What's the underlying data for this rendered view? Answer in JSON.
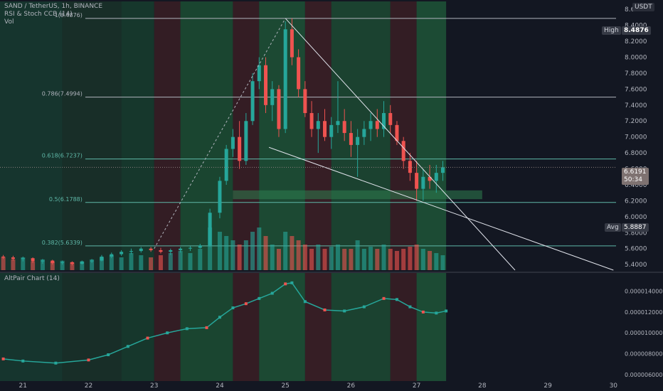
{
  "header": {
    "symbol_line": "SAND / TetherUS, 1h, BINANCE",
    "indicator_1": "RSI & Stoch CCB (14)",
    "indicator_2": "Vol"
  },
  "currency": "USDT",
  "tags": {
    "high_label": "High",
    "high_value": "8.4876",
    "last_value": "6.6191",
    "countdown": "50:34",
    "avg_label": "Avg",
    "avg_value": "5.8887"
  },
  "lower_pane_title": "AltPair Chart (14)",
  "colors": {
    "background": "#131722",
    "bull": "#26a69a",
    "bear": "#ef5350",
    "green_zone": "#1b5e3a",
    "red_zone": "#5e1b22",
    "grid": "#1e222d",
    "line": "#d1d4dc"
  },
  "chart_data": [
    {
      "type": "candlestick",
      "y_axis": {
        "ticks": [
          "8.6000",
          "8.4000",
          "8.2000",
          "8.0000",
          "7.8000",
          "7.6000",
          "7.4000",
          "7.2000",
          "7.0000",
          "6.8000",
          "6.6000",
          "6.4000",
          "6.2000",
          "6.0000",
          "5.8000",
          "5.6000",
          "5.4000"
        ],
        "range": [
          5.33,
          8.7
        ]
      },
      "x_axis": {
        "ticks": [
          "21",
          "22",
          "23",
          "24",
          "25",
          "26",
          "27",
          "28",
          "29",
          "30"
        ],
        "tick_values": [
          21,
          22,
          23,
          24,
          25,
          26,
          27,
          28,
          29,
          30
        ],
        "range": [
          20.65,
          30.04
        ]
      },
      "fib_levels": [
        {
          "label": "1(8.4876)",
          "value": 8.4876
        },
        {
          "label": "0.786(7.4994)",
          "value": 7.4994
        },
        {
          "label": "0.618(6.7237)",
          "value": 6.7237
        },
        {
          "label": "0.5(6.1788)",
          "value": 6.1788
        },
        {
          "label": "0.382(5.6339)",
          "value": 5.6339
        }
      ],
      "last_price": 6.6191,
      "avg_price": 5.8887,
      "zone": {
        "x": [
          24.2,
          28.0
        ],
        "y": [
          6.22,
          6.33
        ]
      },
      "wedge": {
        "upper": [
          [
            25.0,
            8.4876
          ],
          [
            28.5,
            5.33
          ]
        ],
        "lower": [
          [
            24.75,
            6.87
          ],
          [
            30.0,
            5.33
          ]
        ],
        "dashed": [
          [
            23.0,
            5.6
          ],
          [
            25.0,
            8.4876
          ]
        ]
      },
      "ohlc": [
        [
          20.7,
          5.5,
          5.52,
          5.47,
          5.49
        ],
        [
          20.85,
          5.49,
          5.51,
          5.45,
          5.47
        ],
        [
          21.0,
          5.47,
          5.5,
          5.44,
          5.48
        ],
        [
          21.15,
          5.48,
          5.49,
          5.42,
          5.44
        ],
        [
          21.3,
          5.44,
          5.47,
          5.41,
          5.45
        ],
        [
          21.45,
          5.45,
          5.46,
          5.4,
          5.42
        ],
        [
          21.6,
          5.42,
          5.45,
          5.4,
          5.43
        ],
        [
          21.75,
          5.43,
          5.44,
          5.39,
          5.41
        ],
        [
          21.9,
          5.41,
          5.45,
          5.4,
          5.44
        ],
        [
          22.05,
          5.44,
          5.47,
          5.42,
          5.45
        ],
        [
          22.2,
          5.45,
          5.52,
          5.44,
          5.5
        ],
        [
          22.35,
          5.5,
          5.55,
          5.48,
          5.53
        ],
        [
          22.5,
          5.53,
          5.58,
          5.51,
          5.56
        ],
        [
          22.65,
          5.56,
          5.6,
          5.53,
          5.57
        ],
        [
          22.8,
          5.57,
          5.62,
          5.55,
          5.6
        ],
        [
          22.95,
          5.6,
          5.62,
          5.56,
          5.58
        ],
        [
          23.1,
          5.58,
          5.61,
          5.54,
          5.56
        ],
        [
          23.25,
          5.56,
          5.6,
          5.52,
          5.58
        ],
        [
          23.4,
          5.58,
          5.62,
          5.55,
          5.6
        ],
        [
          23.55,
          5.6,
          5.63,
          5.57,
          5.61
        ],
        [
          23.7,
          5.61,
          5.66,
          5.6,
          5.64
        ],
        [
          23.85,
          5.64,
          6.1,
          5.62,
          6.05
        ],
        [
          24.0,
          6.05,
          6.5,
          5.98,
          6.45
        ],
        [
          24.1,
          6.45,
          6.9,
          6.4,
          6.85
        ],
        [
          24.2,
          6.85,
          7.1,
          6.75,
          7.0
        ],
        [
          24.3,
          7.0,
          7.2,
          6.6,
          6.7
        ],
        [
          24.4,
          6.7,
          7.3,
          6.65,
          7.2
        ],
        [
          24.5,
          7.2,
          7.8,
          7.15,
          7.7
        ],
        [
          24.6,
          7.7,
          8.0,
          7.6,
          7.9
        ],
        [
          24.7,
          7.9,
          8.0,
          7.3,
          7.4
        ],
        [
          24.8,
          7.4,
          7.7,
          7.2,
          7.6
        ],
        [
          24.9,
          7.6,
          7.65,
          7.0,
          7.1
        ],
        [
          25.0,
          7.1,
          8.45,
          7.05,
          8.35
        ],
        [
          25.1,
          8.35,
          8.4876,
          7.9,
          8.0
        ],
        [
          25.2,
          8.0,
          8.1,
          7.5,
          7.6
        ],
        [
          25.3,
          7.6,
          7.7,
          7.25,
          7.3
        ],
        [
          25.4,
          7.3,
          7.45,
          7.0,
          7.1
        ],
        [
          25.5,
          7.1,
          7.3,
          6.8,
          7.2
        ],
        [
          25.6,
          7.2,
          7.35,
          6.95,
          7.0
        ],
        [
          25.7,
          7.0,
          7.25,
          6.85,
          7.15
        ],
        [
          25.8,
          7.15,
          7.7,
          7.05,
          7.2
        ],
        [
          25.9,
          7.2,
          7.35,
          6.95,
          7.05
        ],
        [
          26.0,
          7.05,
          7.2,
          6.75,
          6.9
        ],
        [
          26.1,
          6.9,
          7.1,
          6.5,
          7.0
        ],
        [
          26.2,
          7.0,
          7.2,
          6.9,
          7.1
        ],
        [
          26.3,
          7.1,
          7.3,
          6.95,
          7.2
        ],
        [
          26.4,
          7.2,
          7.35,
          7.0,
          7.1
        ],
        [
          26.5,
          7.1,
          7.45,
          7.0,
          7.3
        ],
        [
          26.6,
          7.3,
          7.4,
          7.05,
          7.15
        ],
        [
          26.7,
          7.15,
          7.2,
          6.9,
          6.95
        ],
        [
          26.8,
          6.95,
          7.0,
          6.6,
          6.7
        ],
        [
          26.9,
          6.7,
          6.8,
          6.45,
          6.55
        ],
        [
          27.0,
          6.55,
          6.7,
          6.2,
          6.35
        ],
        [
          27.1,
          6.35,
          6.6,
          6.2,
          6.5
        ],
        [
          27.2,
          6.5,
          6.65,
          6.35,
          6.45
        ],
        [
          27.3,
          6.45,
          6.65,
          6.3,
          6.55
        ],
        [
          27.4,
          6.55,
          6.7,
          6.45,
          6.62
        ]
      ],
      "volume": [
        0.3,
        0.25,
        0.3,
        0.2,
        0.25,
        0.2,
        0.22,
        0.18,
        0.2,
        0.25,
        0.3,
        0.35,
        0.3,
        0.4,
        0.35,
        0.3,
        0.35,
        0.4,
        0.45,
        0.4,
        0.5,
        1.0,
        0.9,
        0.8,
        0.7,
        0.6,
        0.7,
        0.9,
        1.0,
        0.8,
        0.6,
        0.5,
        0.9,
        0.8,
        0.7,
        0.6,
        0.5,
        0.6,
        0.5,
        0.55,
        0.6,
        0.5,
        0.5,
        0.7,
        0.5,
        0.55,
        0.5,
        0.6,
        0.5,
        0.45,
        0.5,
        0.55,
        0.6,
        0.5,
        0.45,
        0.4,
        0.35
      ]
    },
    {
      "type": "line",
      "title": "AltPair Chart (14)",
      "y_axis": {
        "ticks": [
          "0.0000140000",
          "0.0000120000",
          "0.0000100000",
          "0.0000080000",
          "0.0000060000"
        ],
        "range": [
          5.65e-06,
          1.52e-05
        ]
      },
      "x": [
        20.7,
        21.0,
        21.5,
        22.0,
        22.3,
        22.6,
        22.9,
        23.2,
        23.5,
        23.8,
        24.0,
        24.2,
        24.4,
        24.6,
        24.8,
        25.0,
        25.1,
        25.3,
        25.6,
        25.9,
        26.2,
        26.5,
        26.7,
        26.9,
        27.1,
        27.3,
        27.45
      ],
      "y": [
        7.5e-06,
        7.3e-06,
        7.1e-06,
        7.4e-06,
        7.9e-06,
        8.7e-06,
        9.5e-06,
        1e-05,
        1.04e-05,
        1.05e-05,
        1.15e-05,
        1.24e-05,
        1.28e-05,
        1.33e-05,
        1.38e-05,
        1.47e-05,
        1.48e-05,
        1.3e-05,
        1.22e-05,
        1.21e-05,
        1.25e-05,
        1.33e-05,
        1.32e-05,
        1.25e-05,
        1.2e-05,
        1.19e-05,
        1.21e-05
      ]
    }
  ]
}
